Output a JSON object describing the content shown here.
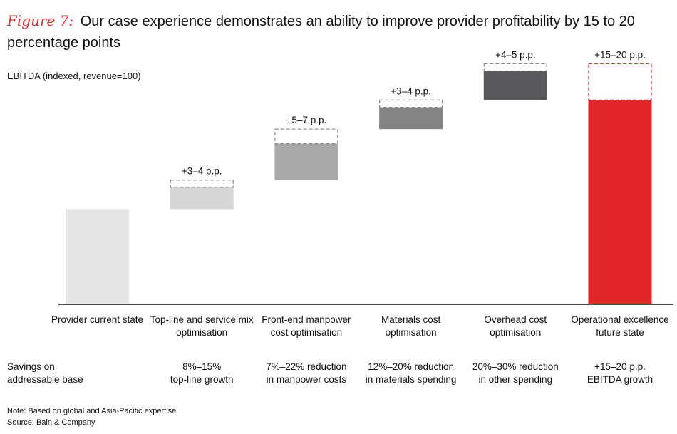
{
  "title": {
    "figure_label": "Figure 7:",
    "text": "Our case experience demonstrates an ability to improve provider profitability by 15 to 20 percentage points"
  },
  "chart_data": {
    "type": "waterfall",
    "ylabel": "EBITDA (indexed, revenue=100)",
    "ylim": [
      0,
      32
    ],
    "categories": [
      "Provider current state",
      "Top-line and service mix optimisation",
      "Front-end manpower cost optimisation",
      "Materials cost optimisation",
      "Overhead cost optimisation",
      "Operational excellence future state"
    ],
    "bars": [
      {
        "kind": "base",
        "start": 0,
        "low": 13.0,
        "high": 13.0,
        "label": "",
        "color": "#e6e6e6"
      },
      {
        "kind": "increment",
        "start": 13.0,
        "low": 3.0,
        "high": 4.0,
        "label": "+3–4 p.p.",
        "color": "#d6d6d6"
      },
      {
        "kind": "increment",
        "start": 17.0,
        "low": 5.0,
        "high": 7.0,
        "label": "+5–7 p.p.",
        "color": "#a9a9aa"
      },
      {
        "kind": "increment",
        "start": 24.0,
        "low": 3.0,
        "high": 4.0,
        "label": "+3–4 p.p.",
        "color": "#848484"
      },
      {
        "kind": "increment",
        "start": 28.0,
        "low": 4.0,
        "high": 5.0,
        "label": "+4–5 p.p.",
        "color": "#58585a"
      },
      {
        "kind": "total",
        "start": 0,
        "low": 28.0,
        "high": 33.0,
        "label": "+15–20 p.p.",
        "color": "#e2262a"
      }
    ],
    "savings_row_label": "Savings on addressable base",
    "savings": [
      [
        "",
        ""
      ],
      [
        "8%–15%",
        "top-line growth"
      ],
      [
        "7%–22% reduction",
        "in manpower costs"
      ],
      [
        "12%–20% reduction",
        "in materials spending"
      ],
      [
        "20%–30% reduction",
        "in other spending"
      ],
      [
        "+15–20 p.p.",
        "EBITDA growth"
      ]
    ]
  },
  "note": "Note: Based on global and Asia-Pacific expertise",
  "source": "Source: Bain & Company"
}
